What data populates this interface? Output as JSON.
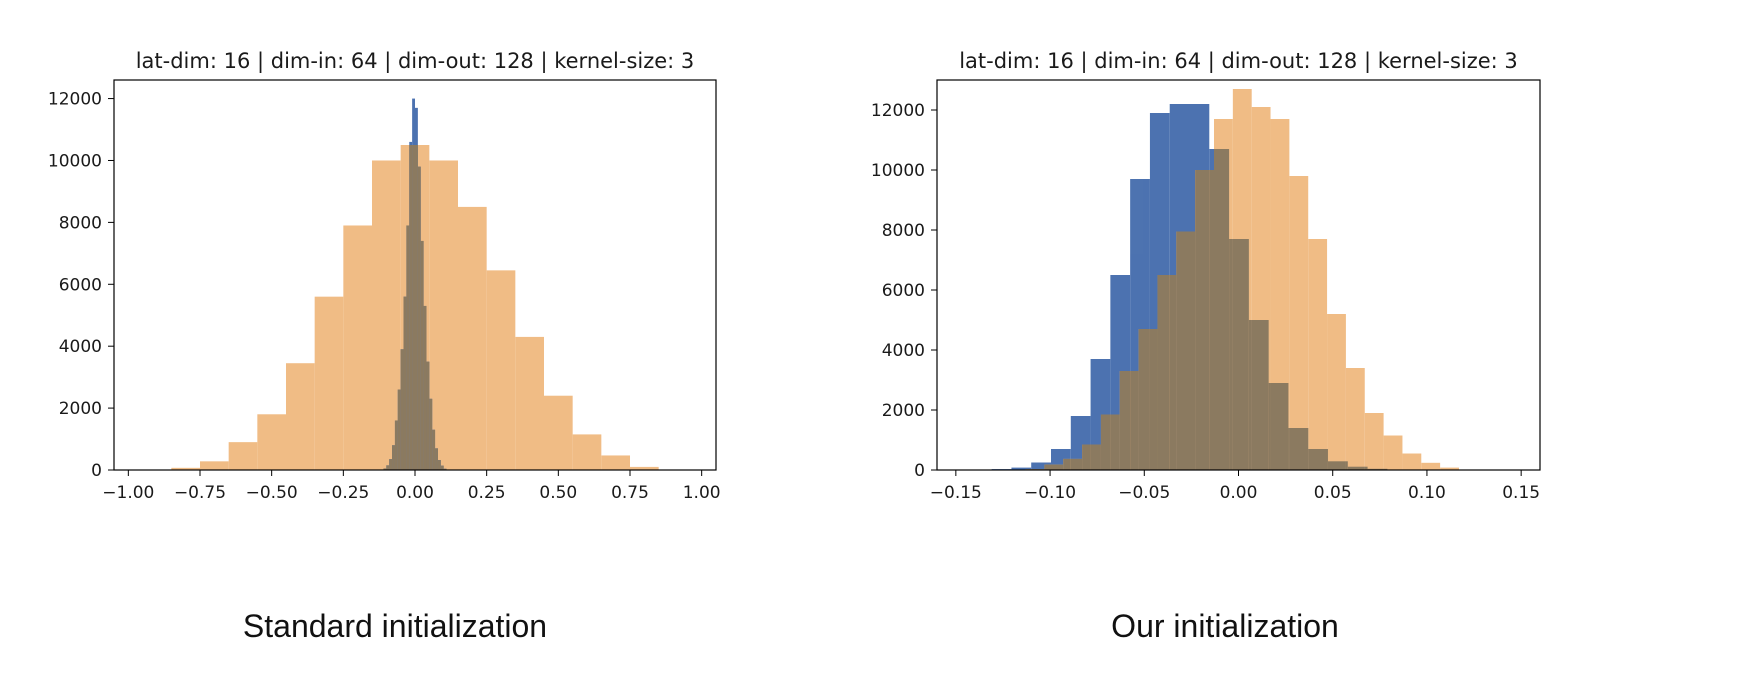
{
  "colors": {
    "series_a": "#4c72b0",
    "series_b": "#f0bc85",
    "overlap": "#8b7a60"
  },
  "captions": {
    "left": "Standard initialization",
    "right": "Our initialization"
  },
  "chart_data": [
    {
      "type": "histogram",
      "title": "lat-dim: 16 | dim-in: 64 | dim-out: 128 | kernel-size: 3",
      "xlim": [
        -1.05,
        1.05
      ],
      "ylim": [
        0,
        12600
      ],
      "xticks": [
        -1.0,
        -0.75,
        -0.5,
        -0.25,
        0.0,
        0.25,
        0.5,
        0.75,
        1.0
      ],
      "xtick_labels": [
        "−1.00",
        "−0.75",
        "−0.50",
        "−0.25",
        "0.00",
        "0.25",
        "0.50",
        "0.75",
        "1.00"
      ],
      "yticks": [
        0,
        2000,
        4000,
        6000,
        8000,
        10000,
        12000
      ],
      "ytick_labels": [
        "0",
        "2000",
        "4000",
        "6000",
        "8000",
        "10000",
        "12000"
      ],
      "grid": false,
      "series": [
        {
          "color_key": "series_b",
          "edges": [
            -0.85,
            -0.75,
            -0.65,
            -0.55,
            -0.45,
            -0.35,
            -0.25,
            -0.15,
            -0.05,
            0.05,
            0.15,
            0.25,
            0.35,
            0.45,
            0.55,
            0.65,
            0.75,
            0.85
          ],
          "counts": [
            70,
            280,
            900,
            1800,
            3450,
            5600,
            7900,
            10000,
            10500,
            10000,
            8500,
            6450,
            4300,
            2400,
            1150,
            470,
            100
          ]
        },
        {
          "color_key": "series_a",
          "edges": [
            -0.11,
            -0.1,
            -0.09,
            -0.08,
            -0.07,
            -0.06,
            -0.05,
            -0.04,
            -0.03,
            -0.02,
            -0.01,
            0.0,
            0.01,
            0.02,
            0.03,
            0.04,
            0.05,
            0.06,
            0.07,
            0.08,
            0.09,
            0.1,
            0.11
          ],
          "counts": [
            50,
            150,
            350,
            800,
            1600,
            2600,
            3900,
            5600,
            7900,
            10600,
            12000,
            11700,
            9800,
            7400,
            5300,
            3500,
            2300,
            1300,
            700,
            320,
            140,
            40
          ]
        }
      ]
    },
    {
      "type": "histogram",
      "title": "lat-dim: 16 | dim-in: 64 | dim-out: 128 | kernel-size: 3",
      "xlim": [
        -0.16,
        0.16
      ],
      "ylim": [
        0,
        13000
      ],
      "xticks": [
        -0.15,
        -0.1,
        -0.05,
        0.0,
        0.05,
        0.1,
        0.15
      ],
      "xtick_labels": [
        "−0.15",
        "−0.10",
        "−0.05",
        "0.00",
        "0.05",
        "0.10",
        "0.15"
      ],
      "yticks": [
        0,
        2000,
        4000,
        6000,
        8000,
        10000,
        12000
      ],
      "ytick_labels": [
        "0",
        "2000",
        "4000",
        "6000",
        "8000",
        "10000",
        "12000"
      ],
      "grid": false,
      "series": [
        {
          "color_key": "series_a",
          "edges": [
            -0.152,
            -0.1415,
            -0.131,
            -0.1205,
            -0.11,
            -0.0995,
            -0.089,
            -0.0785,
            -0.068,
            -0.0575,
            -0.047,
            -0.0365,
            -0.026,
            -0.0155,
            -0.005,
            0.0055,
            0.016,
            0.0265,
            0.037,
            0.0475,
            0.058,
            0.0685,
            0.079,
            0.0895,
            0.1,
            0.1105,
            0.121,
            0.1315,
            0.142,
            0.1525
          ],
          "counts": [
            5,
            10,
            30,
            80,
            250,
            700,
            1800,
            3700,
            6500,
            9700,
            11900,
            12200,
            12200,
            10700,
            7700,
            5000,
            2900,
            1400,
            700,
            290,
            110,
            40,
            15,
            5,
            3,
            2,
            1,
            0,
            0
          ]
        },
        {
          "color_key": "series_b",
          "edges": [
            -0.113,
            -0.103,
            -0.093,
            -0.083,
            -0.073,
            -0.063,
            -0.053,
            -0.043,
            -0.033,
            -0.023,
            -0.013,
            -0.003,
            0.007,
            0.017,
            0.027,
            0.037,
            0.047,
            0.057,
            0.067,
            0.077,
            0.087,
            0.097,
            0.107,
            0.117
          ],
          "counts": [
            30,
            180,
            370,
            850,
            1850,
            3300,
            4700,
            6500,
            7950,
            10000,
            11700,
            12700,
            12100,
            11700,
            9800,
            7700,
            5200,
            3400,
            1900,
            1150,
            550,
            240,
            80
          ]
        }
      ]
    }
  ]
}
